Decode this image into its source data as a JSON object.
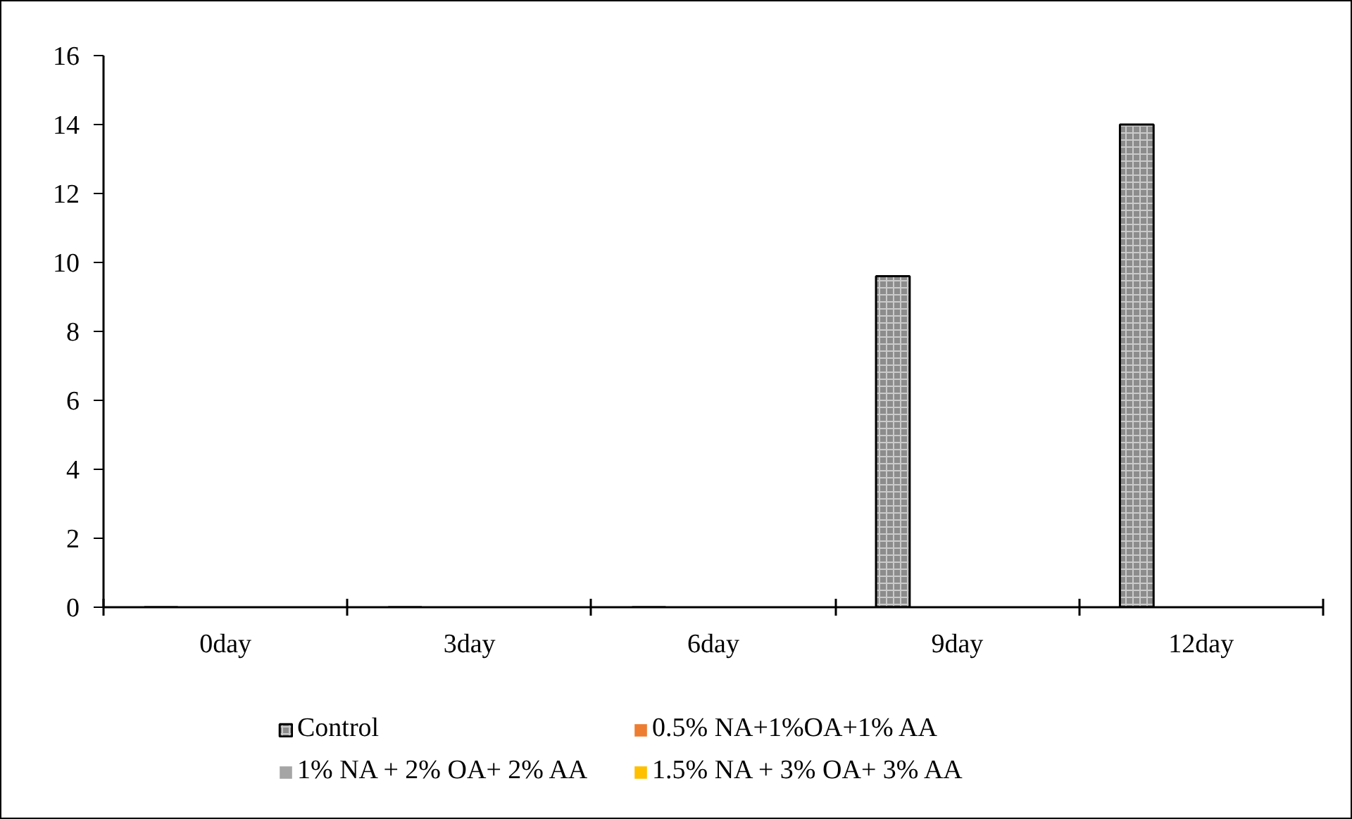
{
  "chart_data": {
    "type": "bar",
    "categories": [
      "0day",
      "3day",
      "6day",
      "9day",
      "12day"
    ],
    "series": [
      {
        "name": "Control",
        "color": "#8c8c8c",
        "values": [
          0,
          0,
          0,
          9.6,
          14
        ]
      },
      {
        "name": "0.5% NA+1%OA+1% AA",
        "color": "#ed7d31",
        "values": [
          0,
          0,
          0,
          0,
          0
        ]
      },
      {
        "name": "1% NA + 2% OA+ 2% AA",
        "color": "#a5a5a5",
        "values": [
          0,
          0,
          0,
          0,
          0
        ]
      },
      {
        "name": "1.5% NA + 3% OA+ 3% AA",
        "color": "#ffc000",
        "values": [
          0,
          0,
          0,
          0,
          0
        ]
      }
    ],
    "ylim": [
      0,
      16
    ],
    "yticks": [
      0,
      2,
      4,
      6,
      8,
      10,
      12,
      14,
      16
    ],
    "grid": false,
    "legend": "bottom"
  }
}
